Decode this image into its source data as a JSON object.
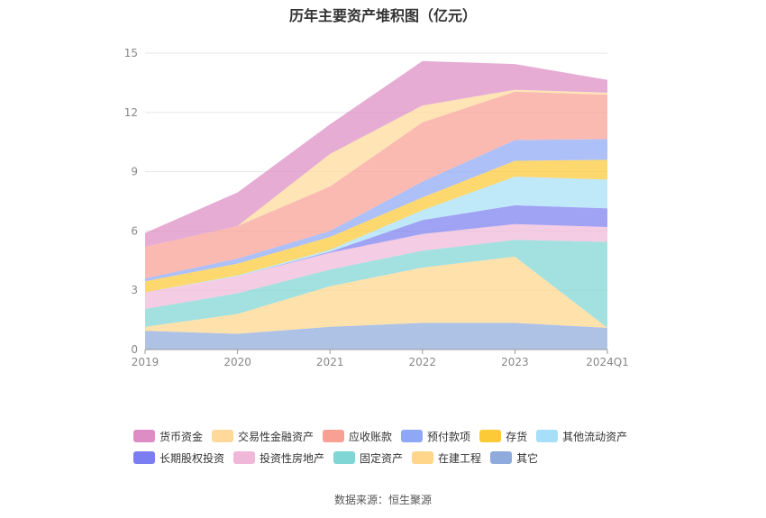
{
  "chart_data": {
    "type": "area",
    "stacked": true,
    "title": "历年主要资产堆积图（亿元）",
    "categories": [
      "2019",
      "2020",
      "2021",
      "2022",
      "2023",
      "2024Q1"
    ],
    "ylim": [
      0,
      15
    ],
    "yticks": [
      0,
      3,
      6,
      9,
      12,
      15
    ],
    "series": [
      {
        "name": "其它",
        "color": "#8faadc",
        "values": [
          0.95,
          0.8,
          1.15,
          1.35,
          1.35,
          1.1
        ]
      },
      {
        "name": "在建工程",
        "color": "#ffd68a",
        "values": [
          0.2,
          1.0,
          2.05,
          2.8,
          3.35,
          0.0
        ]
      },
      {
        "name": "固定资产",
        "color": "#7fd6d4",
        "values": [
          0.9,
          1.05,
          0.85,
          0.85,
          0.85,
          4.35
        ]
      },
      {
        "name": "投资性房地产",
        "color": "#f0b8d8",
        "values": [
          0.85,
          0.85,
          0.85,
          0.85,
          0.8,
          0.75
        ]
      },
      {
        "name": "长期股权投资",
        "color": "#7b7ef0",
        "values": [
          0.0,
          0.0,
          0.05,
          0.7,
          0.95,
          0.95
        ]
      },
      {
        "name": "其他流动资产",
        "color": "#a6dff7",
        "values": [
          0.0,
          0.05,
          0.1,
          0.5,
          1.45,
          1.45
        ]
      },
      {
        "name": "存货",
        "color": "#fcc937",
        "values": [
          0.55,
          0.6,
          0.65,
          0.65,
          0.8,
          1.0
        ]
      },
      {
        "name": "预付款项",
        "color": "#8ea8f5",
        "values": [
          0.15,
          0.25,
          0.3,
          0.8,
          1.05,
          1.05
        ]
      },
      {
        "name": "应收账款",
        "color": "#f8a094",
        "values": [
          1.6,
          1.65,
          2.25,
          3.0,
          2.45,
          2.25
        ]
      },
      {
        "name": "交易性金融资产",
        "color": "#ffd99a",
        "values": [
          0.0,
          0.0,
          1.65,
          0.85,
          0.1,
          0.1
        ]
      },
      {
        "name": "货币资金",
        "color": "#dd8cc4",
        "values": [
          0.7,
          1.7,
          1.5,
          2.25,
          1.3,
          0.65
        ]
      }
    ]
  },
  "legend": {
    "row1": [
      "货币资金",
      "交易性金融资产",
      "应收账款",
      "预付款项",
      "存货",
      "其他流动资产"
    ],
    "row2": [
      "长期股权投资",
      "投资性房地产",
      "固定资产",
      "在建工程",
      "其它"
    ]
  },
  "source": "数据来源：恒生聚源"
}
